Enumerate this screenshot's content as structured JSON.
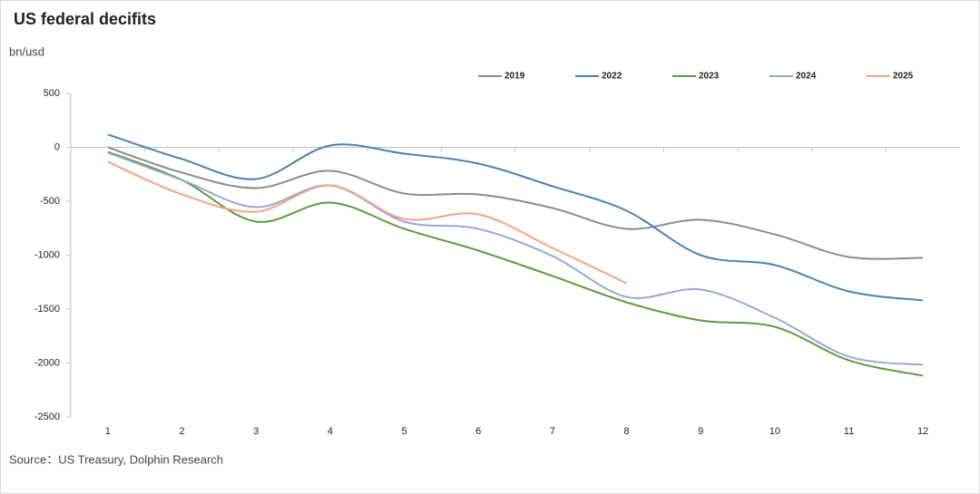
{
  "chart_data": {
    "type": "line",
    "title": "US federal decifits",
    "y_label": "bn/usd",
    "source": "Source：US Treasury, Dolphin Research",
    "categories": [
      "1",
      "2",
      "3",
      "4",
      "5",
      "6",
      "7",
      "8",
      "9",
      "10",
      "11",
      "12"
    ],
    "ylim": [
      -2500,
      500
    ],
    "yticks": [
      -2500,
      -2000,
      -1500,
      -1000,
      -500,
      0,
      500
    ],
    "smooth": true,
    "legend": "top-right",
    "series": [
      {
        "name": "2019",
        "color": "#8c8c8c",
        "values": [
          0,
          -235,
          -378,
          -218,
          -428,
          -437,
          -563,
          -756,
          -672,
          -807,
          -1017,
          -1025
        ]
      },
      {
        "name": "2022",
        "color": "#4a82b4",
        "values": [
          118,
          -109,
          -294,
          17,
          -59,
          -151,
          -361,
          -588,
          -1000,
          -1092,
          -1336,
          -1420
        ]
      },
      {
        "name": "2023",
        "color": "#5e9a3c",
        "values": [
          -42,
          -303,
          -689,
          -513,
          -756,
          -958,
          -1193,
          -1437,
          -1605,
          -1664,
          -1975,
          -2118
        ]
      },
      {
        "name": "2024",
        "color": "#94a8d6",
        "values": [
          -50,
          -303,
          -555,
          -353,
          -689,
          -756,
          -1008,
          -1387,
          -1319,
          -1580,
          -1941,
          -2017
        ]
      },
      {
        "name": "2025",
        "color": "#f4a385",
        "values": [
          -134,
          -437,
          -597,
          -353,
          -664,
          -622,
          -933,
          -1261,
          null,
          null,
          null,
          null
        ]
      }
    ]
  }
}
